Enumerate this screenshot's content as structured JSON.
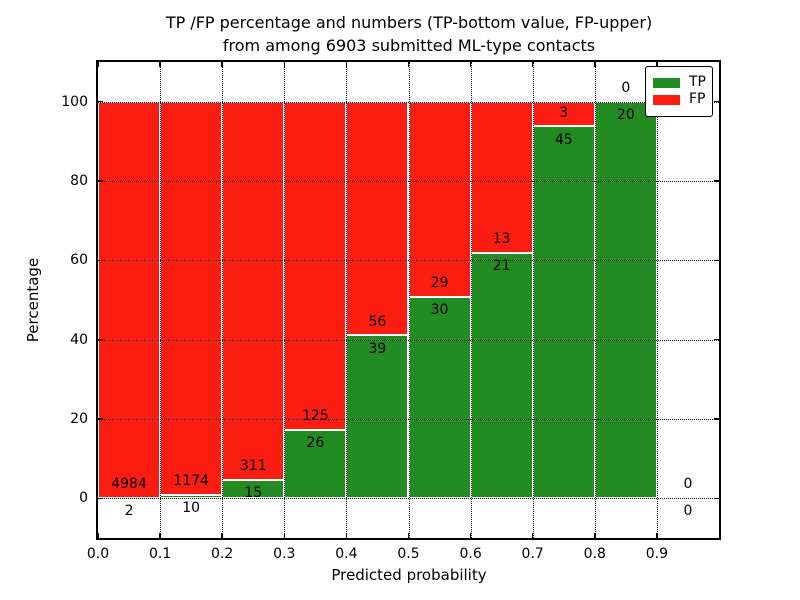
{
  "figure": {
    "title_line1": "TP /FP percentage and numbers (TP-bottom value, FP-upper)",
    "title_line2": "from among 6903 submitted ML-type contacts"
  },
  "chart_data": {
    "type": "bar",
    "stacked": true,
    "title": "TP /FP percentage and numbers (TP-bottom value, FP-upper) from among 6903 submitted ML-type contacts",
    "xlabel": "Predicted probability",
    "ylabel": "Percentage",
    "total_contacts": 6903,
    "grid": true,
    "legend_position": "upper right",
    "xlim": [
      0.0,
      1.0
    ],
    "ylim": [
      -10,
      110
    ],
    "bin_width": 0.1,
    "bin_starts": [
      0.0,
      0.1,
      0.2,
      0.3,
      0.4,
      0.5,
      0.6,
      0.7,
      0.8,
      0.9
    ],
    "categories": [
      "0.0-0.1",
      "0.1-0.2",
      "0.2-0.3",
      "0.3-0.4",
      "0.4-0.5",
      "0.5-0.6",
      "0.6-0.7",
      "0.7-0.8",
      "0.8-0.9",
      "0.9-1.0"
    ],
    "series": [
      {
        "name": "TP",
        "color": "#228b22",
        "position": "bottom",
        "values": [
          2,
          10,
          15,
          26,
          39,
          30,
          21,
          45,
          20,
          0
        ]
      },
      {
        "name": "FP",
        "color": "#fb1d12",
        "position": "top",
        "values": [
          4984,
          1174,
          311,
          125,
          56,
          29,
          13,
          3,
          0,
          0
        ]
      }
    ],
    "bar_height_mode": "percentage of TP+FP per bin; each non-empty bin stacks to 100",
    "xticks": [
      0.0,
      0.1,
      0.2,
      0.3,
      0.4,
      0.5,
      0.6,
      0.7,
      0.8,
      0.9
    ],
    "xtick_labels": [
      "0.0",
      "0.1",
      "0.2",
      "0.3",
      "0.4",
      "0.5",
      "0.6",
      "0.7",
      "0.8",
      "0.9"
    ],
    "yticks": [
      0,
      20,
      40,
      60,
      80,
      100
    ],
    "ytick_labels": [
      "0",
      "20",
      "40",
      "60",
      "80",
      "100"
    ]
  }
}
